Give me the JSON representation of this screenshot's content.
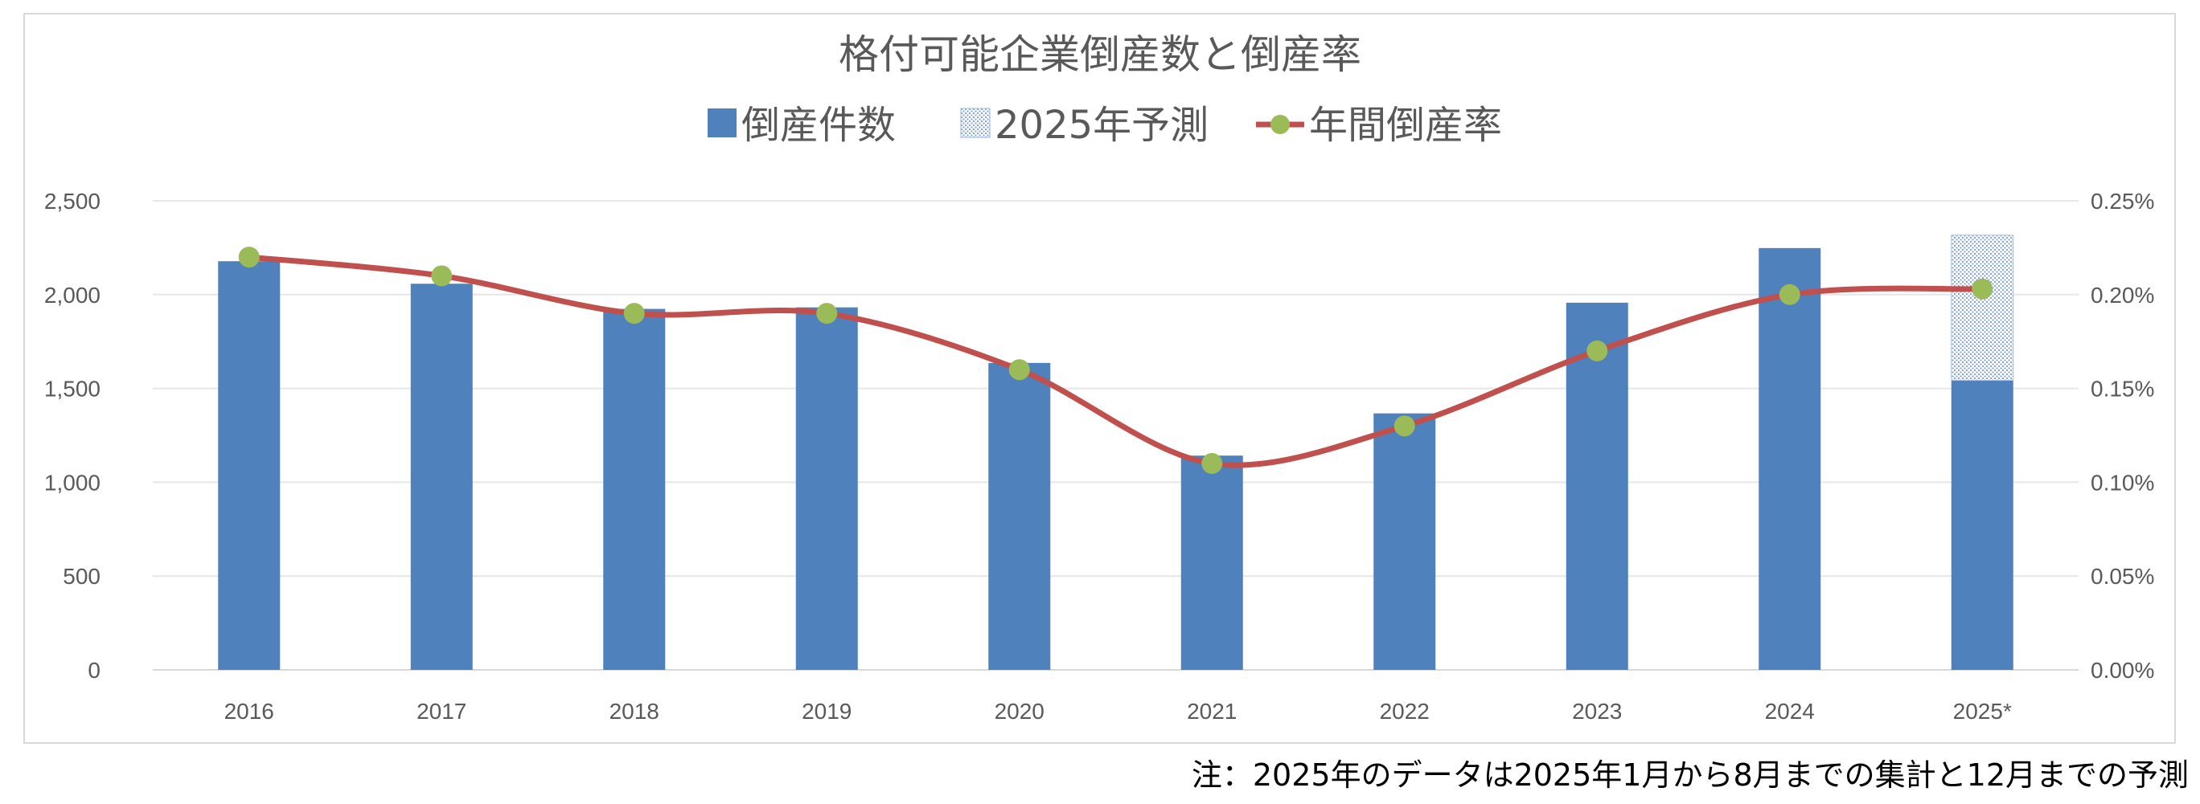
{
  "chart_data": {
    "type": "bar+line",
    "title": "格付可能企業倒産数と倒産率",
    "categories": [
      "2016",
      "2017",
      "2018",
      "2019",
      "2020",
      "2021",
      "2022",
      "2023",
      "2024",
      "2025*"
    ],
    "series": [
      {
        "name": "倒産件数",
        "type": "bar",
        "color": "#4F81BD",
        "values": [
          2178,
          2058,
          1924,
          1932,
          1636,
          1142,
          1367,
          1957,
          2248,
          1543
        ]
      },
      {
        "name": "2025年予測",
        "type": "bar-stacked-forecast",
        "color": "#4F81BD",
        "pattern": "dotted",
        "values": [
          null,
          null,
          null,
          null,
          null,
          null,
          null,
          null,
          null,
          774
        ],
        "total_2025": 2317
      },
      {
        "name": "年間倒産率",
        "type": "line-smooth",
        "axis": "right",
        "line_color": "#C0504D",
        "marker_color": "#9BBB59",
        "values": [
          0.22,
          0.21,
          0.19,
          0.19,
          0.16,
          0.11,
          0.13,
          0.17,
          0.2,
          0.203
        ]
      }
    ],
    "y_left": {
      "range": [
        0,
        2500
      ],
      "ticks": [
        "0",
        "500",
        "1,000",
        "1,500",
        "2,000",
        "2,500"
      ]
    },
    "y_right": {
      "range": [
        0,
        0.25
      ],
      "unit": "%",
      "ticks": [
        "0.00%",
        "0.05%",
        "0.10%",
        "0.15%",
        "0.20%",
        "0.25%"
      ]
    },
    "grid": true,
    "legend_position": "top",
    "footnote": "注：2025年のデータは2025年1月から8月までの集計と12月までの予測"
  }
}
